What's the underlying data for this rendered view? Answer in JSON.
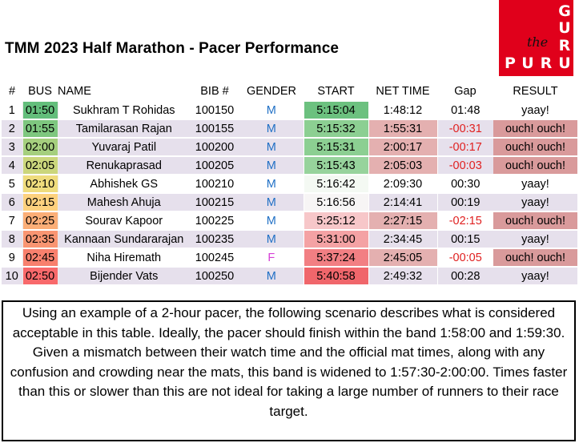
{
  "title": "TMM 2023 Half Marathon - Pacer Performance",
  "logo": {
    "text": "the GURU PURU",
    "letters_top": [
      "G",
      "U",
      "R",
      "U"
    ],
    "letters_bottom": [
      "P",
      "U",
      "R",
      "U"
    ],
    "word": "the",
    "color": "#e0001b"
  },
  "table": {
    "headers": [
      "#",
      "BUS",
      "NAME",
      "BIB #",
      "GENDER",
      "START",
      "NET TIME",
      "Gap",
      "RESULT"
    ],
    "rows": [
      {
        "num": "1",
        "bus": "01:50",
        "name": "Sukhram T Rohidas",
        "bib": "100150",
        "gender": "M",
        "start": "5:15:04",
        "net": "1:48:12",
        "gap": "01:48",
        "result": "yaay!",
        "bus_color": "#63be7b",
        "start_color": "#6cc17f",
        "net_color": "",
        "gap_negative": false,
        "result_color": "",
        "banded": false
      },
      {
        "num": "2",
        "bus": "01:55",
        "name": "Tamilarasan Rajan",
        "bib": "100155",
        "gender": "M",
        "start": "5:15:32",
        "net": "1:55:31",
        "gap": "-00:31",
        "result": "ouch! ouch!",
        "bus_color": "#7ec77f",
        "start_color": "#8ccf92",
        "net_color": "#e4b0b0",
        "gap_negative": true,
        "result_color": "#d99a9b",
        "banded": true
      },
      {
        "num": "3",
        "bus": "02:00",
        "name": "Yuvaraj Patil",
        "bib": "100200",
        "gender": "M",
        "start": "5:15:31",
        "net": "2:00:17",
        "gap": "-00:17",
        "result": "ouch! ouch!",
        "bus_color": "#a5cf7e",
        "start_color": "#8ccf92",
        "net_color": "#e4b0b0",
        "gap_negative": true,
        "result_color": "#d99a9b",
        "banded": true
      },
      {
        "num": "4",
        "bus": "02:05",
        "name": "Renukaprasad",
        "bib": "100205",
        "gender": "M",
        "start": "5:15:43",
        "net": "2:05:03",
        "gap": "-00:03",
        "result": "ouch! ouch!",
        "bus_color": "#cbd67c",
        "start_color": "#97d39c",
        "net_color": "#e4b0b0",
        "gap_negative": true,
        "result_color": "#d99a9b",
        "banded": true
      },
      {
        "num": "5",
        "bus": "02:10",
        "name": "Abhishek GS",
        "bib": "100210",
        "gender": "M",
        "start": "5:16:42",
        "net": "2:09:30",
        "gap": "00:30",
        "result": "yaay!",
        "bus_color": "#efdc7d",
        "start_color": "#f4f9f3",
        "net_color": "",
        "gap_negative": false,
        "result_color": "",
        "banded": false
      },
      {
        "num": "6",
        "bus": "02:15",
        "name": "Mahesh Ahuja",
        "bib": "100215",
        "gender": "M",
        "start": "5:16:56",
        "net": "2:14:41",
        "gap": "00:19",
        "result": "yaay!",
        "bus_color": "#fdd17e",
        "start_color": "#f7f5f5",
        "net_color": "",
        "gap_negative": false,
        "result_color": "",
        "banded": true
      },
      {
        "num": "7",
        "bus": "02:25",
        "name": "Sourav Kapoor",
        "bib": "100225",
        "gender": "M",
        "start": "5:25:12",
        "net": "2:27:15",
        "gap": "-02:15",
        "result": "ouch! ouch!",
        "bus_color": "#fbae77",
        "start_color": "#f7c7c9",
        "net_color": "#e4b0b0",
        "gap_negative": true,
        "result_color": "#d99a9b",
        "banded": false
      },
      {
        "num": "8",
        "bus": "02:35",
        "name": "Kannaan Sundararajan",
        "bib": "100235",
        "gender": "M",
        "start": "5:31:00",
        "net": "2:34:45",
        "gap": "00:15",
        "result": "yaay!",
        "bus_color": "#f99572",
        "start_color": "#f4a2a4",
        "net_color": "",
        "gap_negative": false,
        "result_color": "",
        "banded": true
      },
      {
        "num": "9",
        "bus": "02:45",
        "name": "Niha Hiremath",
        "bib": "100245",
        "gender": "F",
        "start": "5:37:24",
        "net": "2:45:05",
        "gap": "-00:05",
        "result": "ouch! ouch!",
        "bus_color": "#f8806d",
        "start_color": "#f27f83",
        "net_color": "#e4b0b0",
        "gap_negative": true,
        "result_color": "#d99a9b",
        "banded": false
      },
      {
        "num": "10",
        "bus": "02:50",
        "name": "Bijender Vats",
        "bib": "100250",
        "gender": "M",
        "start": "5:40:58",
        "net": "2:49:32",
        "gap": "00:28",
        "result": "yaay!",
        "bus_color": "#f8696b",
        "start_color": "#f0666b",
        "net_color": "",
        "gap_negative": false,
        "result_color": "",
        "banded": true
      }
    ]
  },
  "note": "Using an example of a 2-hour pacer, the following scenario describes what is considered acceptable in this table. Ideally, the pacer should finish within the band 1:58:00 and 1:59:30. Given a mismatch between their watch time and the official mat times, along with any confusion and crowding near the mats, this band is widened to 1:57:30-2:00:00. Times faster than this or slower than this are not ideal for taking a large number of runners to their race target."
}
